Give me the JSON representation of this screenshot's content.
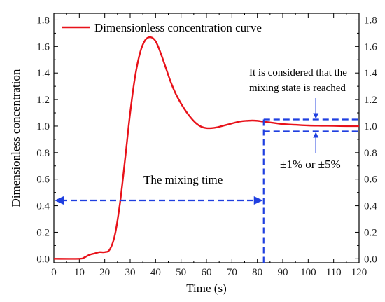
{
  "chart_data": {
    "type": "line",
    "title": "",
    "xlabel": "Time (s)",
    "ylabel": "Dimensionless concentration",
    "xlim": [
      0,
      120
    ],
    "ylim": [
      -0.03,
      1.85
    ],
    "x_ticks": [
      0,
      10,
      20,
      30,
      40,
      50,
      60,
      70,
      80,
      90,
      100,
      110,
      120
    ],
    "y_ticks": [
      "0.0",
      "0.2",
      "0.4",
      "0.6",
      "0.8",
      "1.0",
      "1.2",
      "1.4",
      "1.6",
      "1.8"
    ],
    "grid": false,
    "legend_position": "top-left",
    "series": [
      {
        "name": "Dimensionless concentration curve",
        "color": "#e8121a",
        "x": [
          0,
          10,
          12,
          14,
          16,
          18,
          20,
          22,
          24,
          26,
          28,
          30,
          32,
          34,
          36,
          38,
          40,
          42,
          44,
          46,
          48,
          50,
          52,
          54,
          56,
          58,
          60,
          62,
          64,
          66,
          68,
          70,
          72,
          74,
          76,
          78,
          80,
          82,
          84,
          86,
          88,
          90,
          95,
          100,
          105,
          110,
          115,
          120
        ],
        "y": [
          0,
          0,
          0.01,
          0.03,
          0.04,
          0.05,
          0.05,
          0.07,
          0.18,
          0.42,
          0.75,
          1.1,
          1.38,
          1.56,
          1.65,
          1.67,
          1.64,
          1.55,
          1.44,
          1.33,
          1.24,
          1.17,
          1.11,
          1.06,
          1.02,
          0.995,
          0.985,
          0.985,
          0.99,
          1.0,
          1.01,
          1.02,
          1.03,
          1.037,
          1.04,
          1.042,
          1.04,
          1.035,
          1.03,
          1.025,
          1.02,
          1.015,
          1.01,
          1.005,
          1.003,
          1.002,
          1.0,
          1.0
        ]
      }
    ],
    "annotations": {
      "mixing_time": {
        "label": "The mixing time",
        "x_start": 0,
        "x_end": 82.5,
        "y": 0.44,
        "color": "#1f3fe0"
      },
      "band": {
        "upper": 1.05,
        "lower": 0.96,
        "x_start": 82.5,
        "x_end": 120,
        "color": "#1f3fe0"
      },
      "state_note": [
        "It is considered that the",
        "mixing state is reached"
      ],
      "tolerance_label": "±1% or ±5%"
    }
  }
}
